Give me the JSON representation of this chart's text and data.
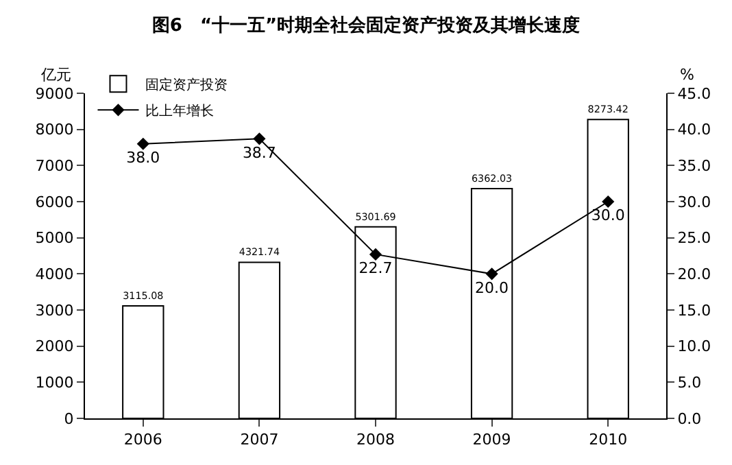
{
  "chart_data": {
    "type": "bar",
    "title": "图6　“十一五”时期全社会固定资产投资及其增长速度",
    "ylabel": "亿元",
    "y2label": "%",
    "categories": [
      "2006",
      "2007",
      "2008",
      "2009",
      "2010"
    ],
    "series": [
      {
        "name": "固定资产投资",
        "color": "#ffffff",
        "values": [
          3115.08,
          4321.74,
          5301.69,
          6362.03,
          8273.42
        ],
        "value_labels": [
          "3115.08",
          "4321.74",
          "5301.69",
          "6362.03",
          "8273.42"
        ]
      },
      {
        "name": "比上年增长",
        "type": "line",
        "axis": "y2",
        "color": "#000000",
        "marker": "diamond",
        "values": [
          38.0,
          38.7,
          22.7,
          20.0,
          30.0
        ],
        "value_labels": [
          "38.0",
          "38.7",
          "22.7",
          "20.0",
          "30.0"
        ]
      }
    ],
    "ylim": [
      0,
      9000
    ],
    "yticks": [
      0,
      1000,
      2000,
      3000,
      4000,
      5000,
      6000,
      7000,
      8000,
      9000
    ],
    "y2lim": [
      0,
      45
    ],
    "y2ticks": [
      {
        "value": 0,
        "label": "0.0"
      },
      {
        "value": 5,
        "label": "5.0"
      },
      {
        "value": 10,
        "label": "10.0"
      },
      {
        "value": 15,
        "label": "15.0"
      },
      {
        "value": 20,
        "label": "20.0"
      },
      {
        "value": 25,
        "label": "25.0"
      },
      {
        "value": 30,
        "label": "30.0"
      },
      {
        "value": 35,
        "label": "35.0"
      },
      {
        "value": 40,
        "label": "40.0"
      },
      {
        "value": 45,
        "label": "45.0"
      }
    ],
    "legend": "top left"
  }
}
